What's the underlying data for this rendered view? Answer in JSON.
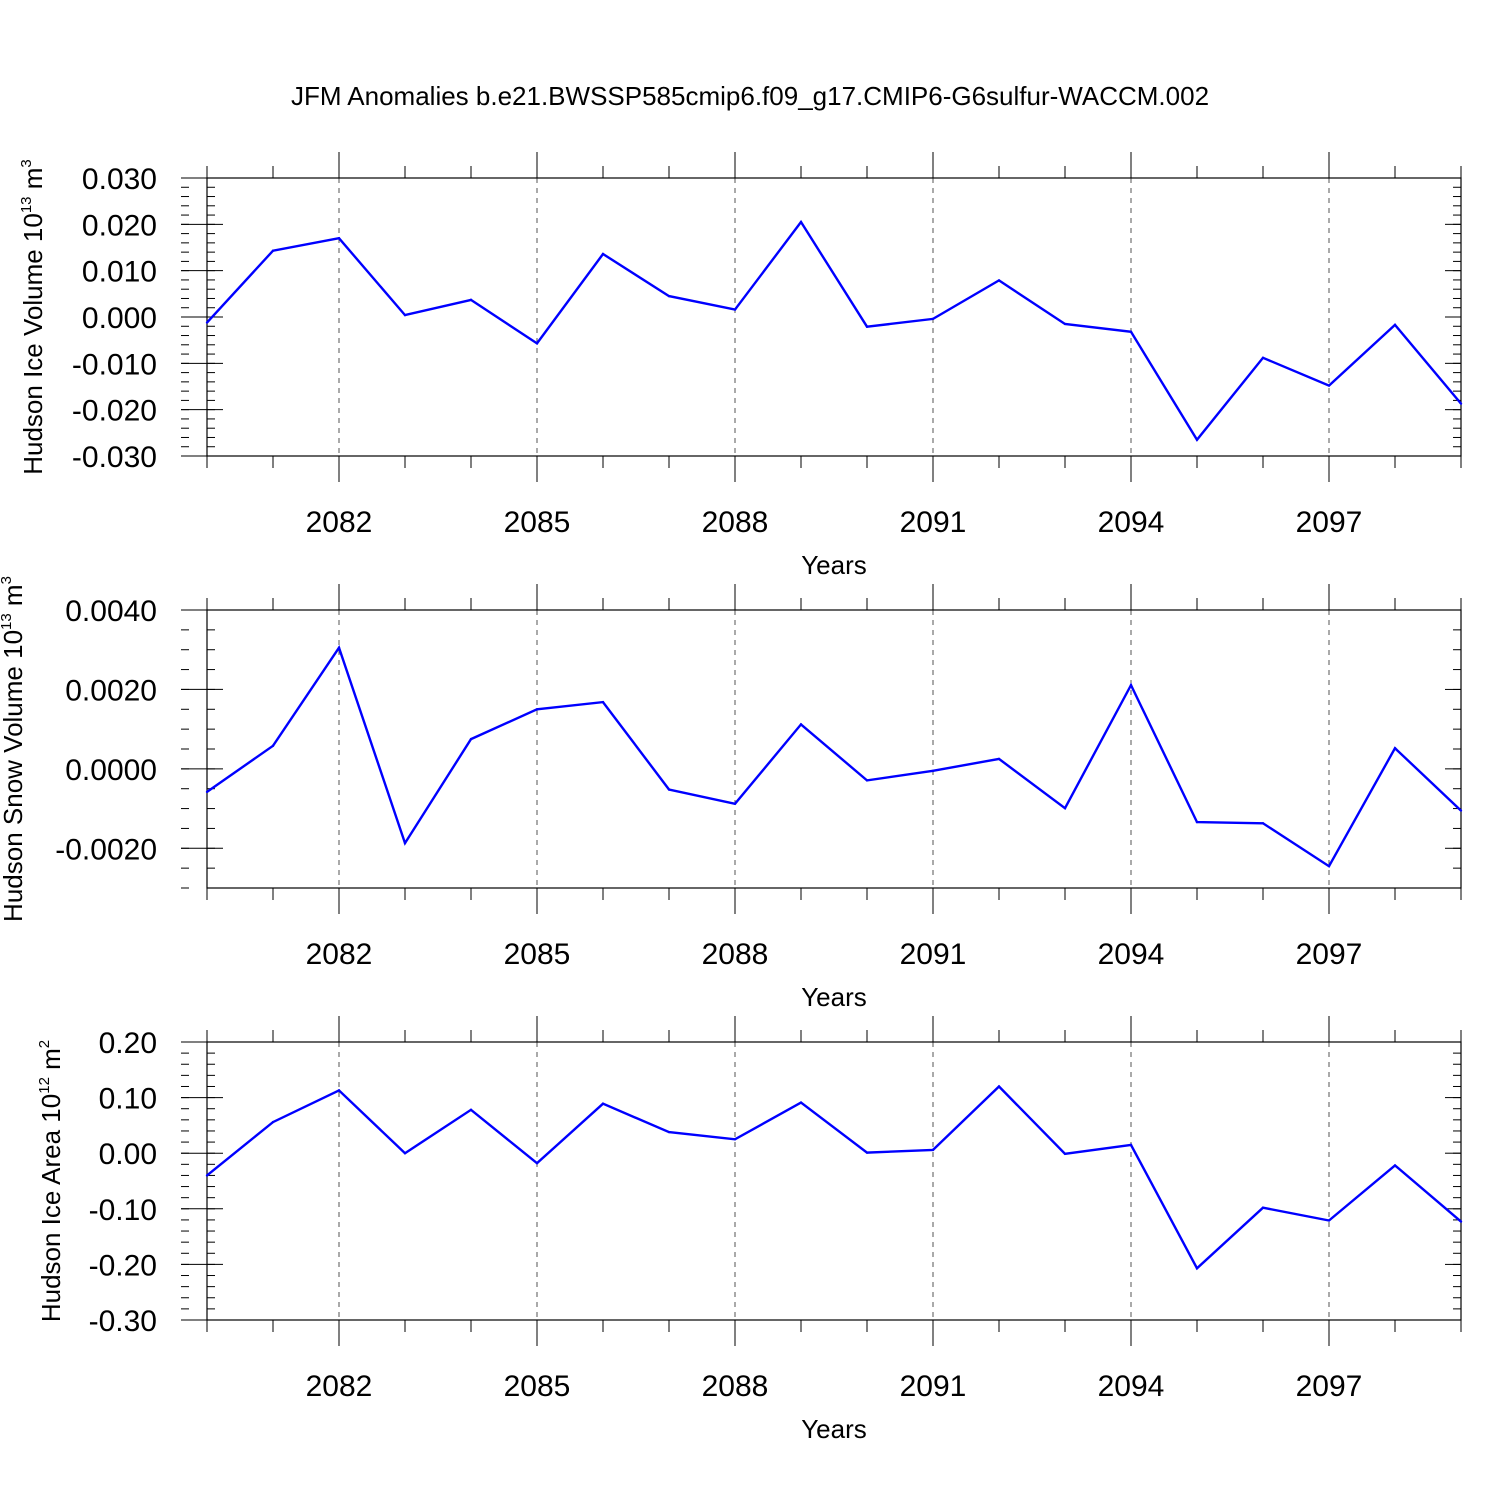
{
  "figure": {
    "title": "JFM Anomalies b.e21.BWSSP585cmip6.f09_g17.CMIP6-G6sulfur-WACCM.002"
  },
  "colors": {
    "series": "#0000ff",
    "axes": "#000000",
    "grid": "#555555"
  },
  "chart_data": [
    {
      "type": "line",
      "title": "",
      "xlabel": "Years",
      "ylabel": "Hudson Ice Volume 10",
      "ylabel_exponent": "13",
      "ylabel_unit": " m",
      "ylabel_unit_exponent": "3",
      "xlim": [
        2080,
        2099
      ],
      "ylim": [
        -0.03,
        0.03
      ],
      "x_ticks": [
        2082,
        2085,
        2088,
        2091,
        2094,
        2097
      ],
      "x_tick_labels": [
        "2082",
        "2085",
        "2088",
        "2091",
        "2094",
        "2097"
      ],
      "y_ticks": [
        -0.03,
        -0.02,
        -0.01,
        0.0,
        0.01,
        0.02,
        0.03
      ],
      "y_tick_labels": [
        "-0.030",
        "-0.020",
        "-0.010",
        "0.000",
        "0.010",
        "0.020",
        "0.030"
      ],
      "y_minor_step": 0.002,
      "grid": "x-major dashed",
      "series": [
        {
          "x": [
            2080,
            2081,
            2082,
            2083,
            2084,
            2085,
            2086,
            2087,
            2088,
            2089,
            2090,
            2091,
            2092,
            2093,
            2094,
            2095,
            2096,
            2097,
            2098,
            2099
          ],
          "values": [
            -0.0012,
            0.0143,
            0.017,
            0.0004,
            0.0037,
            -0.0057,
            0.0136,
            0.0045,
            0.0016,
            0.0205,
            -0.0021,
            -0.0004,
            0.0079,
            -0.0015,
            -0.0032,
            -0.0265,
            -0.0088,
            -0.0148,
            -0.0017,
            -0.0187
          ]
        }
      ]
    },
    {
      "type": "line",
      "title": "",
      "xlabel": "Years",
      "ylabel": "Hudson Snow Volume 10",
      "ylabel_exponent": "13",
      "ylabel_unit": " m",
      "ylabel_unit_exponent": "3",
      "xlim": [
        2080,
        2099
      ],
      "ylim": [
        -0.003,
        0.004
      ],
      "x_ticks": [
        2082,
        2085,
        2088,
        2091,
        2094,
        2097
      ],
      "x_tick_labels": [
        "2082",
        "2085",
        "2088",
        "2091",
        "2094",
        "2097"
      ],
      "y_ticks": [
        -0.002,
        0.0,
        0.002,
        0.004
      ],
      "y_tick_labels": [
        "-0.0020",
        "0.0000",
        "0.0020",
        "0.0040"
      ],
      "y_minor_step": 0.0005,
      "grid": "x-major dashed",
      "series": [
        {
          "x": [
            2080,
            2081,
            2082,
            2083,
            2084,
            2085,
            2086,
            2087,
            2088,
            2089,
            2090,
            2091,
            2092,
            2093,
            2094,
            2095,
            2096,
            2097,
            2098,
            2099
          ],
          "values": [
            -0.00058,
            0.00058,
            0.00305,
            -0.00187,
            0.00075,
            0.0015,
            0.00168,
            -0.00052,
            -0.00088,
            0.00112,
            -0.00029,
            -5e-05,
            0.00025,
            -0.00099,
            0.00211,
            -0.00134,
            -0.00137,
            -0.00245,
            0.00052,
            -0.00105
          ]
        }
      ]
    },
    {
      "type": "line",
      "title": "",
      "xlabel": "Years",
      "ylabel": "Hudson Ice Area 10",
      "ylabel_exponent": "12",
      "ylabel_unit": " m",
      "ylabel_unit_exponent": "2",
      "xlim": [
        2080,
        2099
      ],
      "ylim": [
        -0.3,
        0.2
      ],
      "x_ticks": [
        2082,
        2085,
        2088,
        2091,
        2094,
        2097
      ],
      "x_tick_labels": [
        "2082",
        "2085",
        "2088",
        "2091",
        "2094",
        "2097"
      ],
      "y_ticks": [
        -0.3,
        -0.2,
        -0.1,
        0.0,
        0.1,
        0.2
      ],
      "y_tick_labels": [
        "-0.30",
        "-0.20",
        "-0.10",
        "0.00",
        "0.10",
        "0.20"
      ],
      "y_minor_step": 0.02,
      "grid": "x-major dashed",
      "series": [
        {
          "x": [
            2080,
            2081,
            2082,
            2083,
            2084,
            2085,
            2086,
            2087,
            2088,
            2089,
            2090,
            2091,
            2092,
            2093,
            2094,
            2095,
            2096,
            2097,
            2098,
            2099
          ],
          "values": [
            -0.04,
            0.056,
            0.113,
            0.0,
            0.078,
            -0.018,
            0.089,
            0.038,
            0.025,
            0.091,
            0.001,
            0.006,
            0.12,
            -0.001,
            0.015,
            -0.207,
            -0.098,
            -0.121,
            -0.022,
            -0.123
          ]
        }
      ]
    }
  ]
}
